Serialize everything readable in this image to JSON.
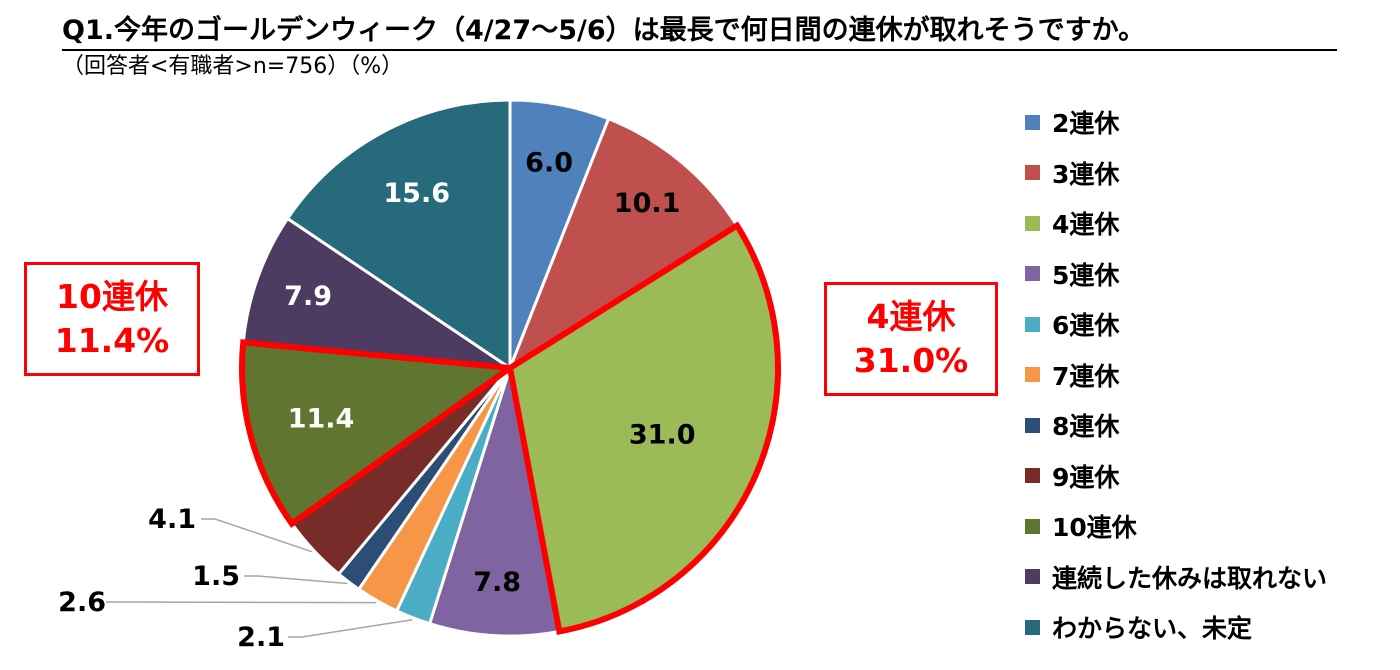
{
  "title": "Q1.今年のゴールデンウィーク（4/27～5/6）は最長で何日間の連休が取れそうですか。",
  "subtitle": "（回答者<有職者>n=756）（%）",
  "chart_data": {
    "type": "pie",
    "unit": "%",
    "categories": [
      "2連休",
      "3連休",
      "4連休",
      "5連休",
      "6連休",
      "7連休",
      "8連休",
      "9連休",
      "10連休",
      "連続した休みは取れない",
      "わからない、未定"
    ],
    "values": [
      6.0,
      10.1,
      31.0,
      7.8,
      2.1,
      2.6,
      1.5,
      4.1,
      11.4,
      7.9,
      15.6
    ],
    "value_labels": [
      "6.0",
      "10.1",
      "31.0",
      "7.8",
      "2.1",
      "2.6",
      "1.5",
      "4.1",
      "11.4",
      "7.9",
      "15.6"
    ],
    "colors": [
      "#4f81bd",
      "#c0504d",
      "#9bbb59",
      "#8064a2",
      "#4bacc6",
      "#f79646",
      "#2c4d75",
      "#772c2a",
      "#5f7530",
      "#4d3b62",
      "#276a7c"
    ],
    "label_colors": [
      "#000000",
      "#000000",
      "#000000",
      "#000000",
      "#000000",
      "#000000",
      "#000000",
      "#000000",
      "#ffffff",
      "#ffffff",
      "#ffffff"
    ],
    "highlighted": [
      "4連休",
      "10連休"
    ],
    "highlight_color": "#ff0000",
    "legend_position": "right"
  },
  "callouts": {
    "left": {
      "line1": "10連休",
      "line2": "11.4%"
    },
    "right": {
      "line1": "4連休",
      "line2": "31.0%"
    }
  }
}
